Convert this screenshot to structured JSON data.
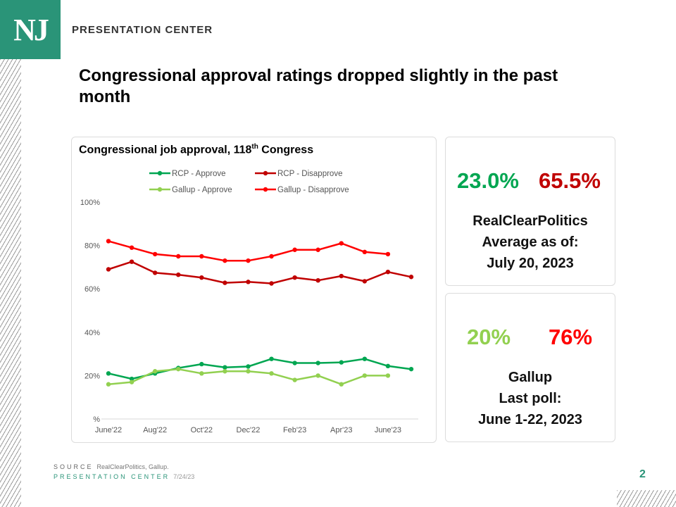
{
  "brand": {
    "logo": "NJ",
    "name": "PRESENTATION CENTER"
  },
  "title": "Congressional approval ratings dropped slightly in the past month",
  "chart_data": {
    "type": "line",
    "title": "Congressional job approval, 118",
    "title_sup": "th",
    "title_suffix": " Congress",
    "x": [
      "June'22",
      "Jul'22",
      "Aug'22",
      "Sep'22",
      "Oct'22",
      "Nov'22",
      "Dec'22",
      "Jan'23",
      "Feb'23",
      "Mar'23",
      "Apr'23",
      "May'23",
      "June'23",
      "Jul'23"
    ],
    "xtick_labels": [
      "June'22",
      "Aug'22",
      "Oct'22",
      "Dec'22",
      "Feb'23",
      "Apr'23",
      "June'23"
    ],
    "ylim": [
      0,
      100
    ],
    "yticks": [
      0,
      20,
      40,
      60,
      80,
      100
    ],
    "ytick_labels": [
      "%",
      "20%",
      "40%",
      "60%",
      "80%",
      "100%"
    ],
    "legend_position": "top",
    "series": [
      {
        "name": "RCP - Approve",
        "color": "#00a651",
        "values": [
          21,
          18.5,
          21,
          23.5,
          25.3,
          23.8,
          24.2,
          27.7,
          25.8,
          25.8,
          26.1,
          27.7,
          24.4,
          23.0
        ]
      },
      {
        "name": "RCP - Disapprove",
        "color": "#c00000",
        "values": [
          69,
          72.5,
          67.4,
          66.5,
          65.2,
          62.8,
          63.2,
          62.5,
          65.2,
          63.9,
          65.9,
          63.5,
          67.8,
          65.5
        ]
      },
      {
        "name": "Gallup - Approve",
        "color": "#92d050",
        "values": [
          16,
          17,
          22,
          23,
          21,
          22,
          22,
          21,
          18,
          20,
          16,
          20,
          20,
          null
        ]
      },
      {
        "name": "Gallup - Disapprove",
        "color": "#ff0000",
        "values": [
          82,
          79,
          76,
          75,
          75,
          73,
          73,
          75,
          78,
          78,
          81,
          77,
          76,
          null
        ]
      }
    ]
  },
  "rcp": {
    "approve": "23.0%",
    "disapprove": "65.5%",
    "line1": "RealClearPolitics",
    "line2": "Average as of:",
    "line3": "July 20, 2023",
    "approve_color": "#00a651",
    "disapprove_color": "#c00000"
  },
  "gallup": {
    "approve": "20%",
    "disapprove": "76%",
    "line1": "Gallup",
    "line2": "Last poll:",
    "line3": "June 1-22, 2023",
    "approve_color": "#92d050",
    "disapprove_color": "#ff0000"
  },
  "source": {
    "label": "SOURCE",
    "text": "RealClearPolitics, Gallup."
  },
  "footer": {
    "label": "PRESENTATION CENTER",
    "date": "7/24/23"
  },
  "page_number": "2"
}
